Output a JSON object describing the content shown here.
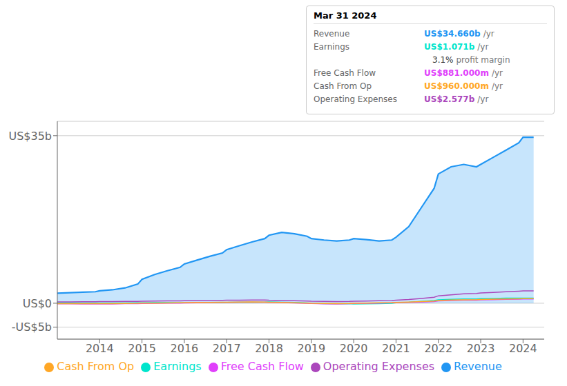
{
  "chart_data": {
    "type": "line",
    "title": "Mar 31 2024",
    "x": [
      2013.0,
      2013.3,
      2013.6,
      2013.9,
      2014.0,
      2014.3,
      2014.6,
      2014.9,
      2015.0,
      2015.3,
      2015.6,
      2015.9,
      2016.0,
      2016.3,
      2016.6,
      2016.9,
      2017.0,
      2017.3,
      2017.6,
      2017.9,
      2018.0,
      2018.3,
      2018.6,
      2018.9,
      2019.0,
      2019.3,
      2019.6,
      2019.9,
      2020.0,
      2020.3,
      2020.6,
      2020.9,
      2021.0,
      2021.3,
      2021.6,
      2021.9,
      2022.0,
      2022.3,
      2022.6,
      2022.9,
      2023.0,
      2023.3,
      2023.6,
      2023.9,
      2024.0,
      2024.25
    ],
    "series": [
      {
        "name": "Revenue",
        "color": "#2196f3",
        "type": "area",
        "values": [
          2.1,
          2.2,
          2.3,
          2.4,
          2.6,
          2.8,
          3.2,
          4.0,
          5.0,
          6.0,
          6.8,
          7.5,
          8.2,
          9.0,
          9.8,
          10.5,
          11.2,
          12.0,
          12.8,
          13.5,
          14.2,
          14.8,
          14.5,
          14.0,
          13.5,
          13.2,
          13.0,
          13.2,
          13.5,
          13.3,
          13.0,
          13.2,
          13.8,
          16.0,
          20.0,
          24.0,
          27.0,
          28.5,
          29.0,
          28.5,
          29.0,
          30.5,
          32.0,
          33.5,
          34.66,
          34.66
        ]
      },
      {
        "name": "Earnings",
        "color": "#00e5cc",
        "type": "line",
        "values": [
          0.05,
          0.05,
          0.04,
          0.04,
          0.03,
          0.04,
          0.06,
          0.08,
          0.1,
          0.12,
          0.12,
          0.1,
          0.08,
          0.1,
          0.12,
          0.14,
          0.16,
          0.2,
          0.22,
          0.25,
          0.28,
          0.22,
          0.15,
          0.05,
          -0.02,
          -0.08,
          -0.12,
          -0.1,
          -0.15,
          -0.12,
          -0.08,
          -0.02,
          0.08,
          0.2,
          0.38,
          0.55,
          0.72,
          0.82,
          0.88,
          0.9,
          0.95,
          1.0,
          1.05,
          1.07,
          1.071,
          1.071
        ]
      },
      {
        "name": "Free Cash Flow",
        "color": "#e040fb",
        "type": "line",
        "values": [
          -0.12,
          -0.13,
          -0.14,
          -0.13,
          -0.15,
          -0.14,
          -0.1,
          -0.08,
          -0.04,
          -0.01,
          0.02,
          0.04,
          0.06,
          0.1,
          0.12,
          0.15,
          0.18,
          0.2,
          0.22,
          0.2,
          0.18,
          0.12,
          0.06,
          -0.02,
          -0.06,
          -0.12,
          -0.14,
          -0.1,
          -0.04,
          0.0,
          0.04,
          0.08,
          0.12,
          0.18,
          0.25,
          0.35,
          0.48,
          0.58,
          0.62,
          0.65,
          0.7,
          0.76,
          0.82,
          0.86,
          0.881,
          0.881
        ]
      },
      {
        "name": "Cash From Op",
        "color": "#ffa726",
        "type": "line",
        "values": [
          -0.08,
          -0.08,
          -0.09,
          -0.08,
          -0.1,
          -0.09,
          -0.06,
          -0.03,
          0.01,
          0.04,
          0.07,
          0.1,
          0.12,
          0.15,
          0.18,
          0.2,
          0.22,
          0.25,
          0.28,
          0.25,
          0.22,
          0.16,
          0.1,
          0.02,
          -0.02,
          -0.06,
          -0.1,
          -0.06,
          -0.01,
          0.04,
          0.09,
          0.14,
          0.18,
          0.25,
          0.34,
          0.45,
          0.58,
          0.68,
          0.72,
          0.74,
          0.78,
          0.84,
          0.9,
          0.94,
          0.96,
          0.96
        ]
      },
      {
        "name": "Operating Expenses",
        "color": "#ab47bc",
        "type": "line",
        "values": [
          0.28,
          0.29,
          0.3,
          0.31,
          0.33,
          0.36,
          0.38,
          0.4,
          0.42,
          0.45,
          0.48,
          0.5,
          0.52,
          0.55,
          0.58,
          0.6,
          0.62,
          0.65,
          0.68,
          0.66,
          0.62,
          0.58,
          0.52,
          0.46,
          0.42,
          0.38,
          0.36,
          0.38,
          0.42,
          0.46,
          0.52,
          0.58,
          0.62,
          0.78,
          1.0,
          1.25,
          1.55,
          1.75,
          1.95,
          2.05,
          2.15,
          2.25,
          2.4,
          2.52,
          2.577,
          2.577
        ]
      }
    ],
    "xlim": [
      2013.0,
      2024.5
    ],
    "xticks": [
      2014,
      2015,
      2016,
      2017,
      2018,
      2019,
      2020,
      2021,
      2022,
      2023,
      2024
    ],
    "ylim": [
      -7.5,
      38
    ],
    "yticks": [
      {
        "value": -5,
        "label": "-US$5b"
      },
      {
        "value": 0,
        "label": "US$0"
      },
      {
        "value": 35,
        "label": "US$35b"
      }
    ],
    "grid": true,
    "legend": "bottom",
    "annotations": [
      {
        "label": "Revenue",
        "text": "US$34.660b",
        "suffix": "/yr",
        "color": "#2196f3"
      },
      {
        "label": "Earnings",
        "text": "US$1.071b",
        "suffix": "/yr",
        "color": "#00e5cc"
      },
      {
        "text": "3.1%",
        "suffix": "profit margin"
      },
      {
        "label": "Free Cash Flow",
        "text": "US$881.000m",
        "suffix": "/yr",
        "color": "#e040fb"
      },
      {
        "label": "Cash From Op",
        "text": "US$960.000m",
        "suffix": "/yr",
        "color": "#ffa726"
      },
      {
        "label": "Operating Expenses",
        "text": "US$2.577b",
        "suffix": "/yr",
        "color": "#ab47bc"
      }
    ]
  }
}
